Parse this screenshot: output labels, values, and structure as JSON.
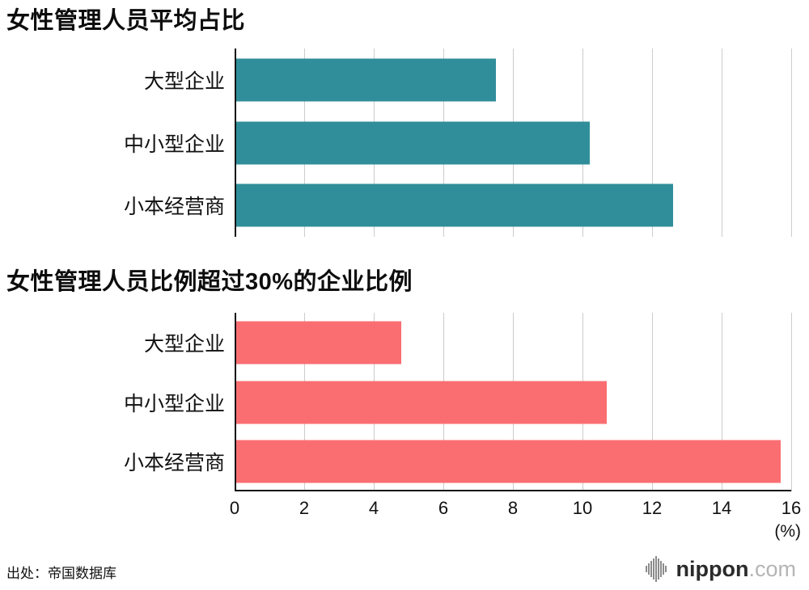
{
  "chart_data": [
    {
      "type": "bar",
      "orientation": "horizontal",
      "title": "女性管理人员平均占比",
      "categories": [
        "大型企业",
        "中小型企业",
        "小本经营商"
      ],
      "values": [
        7.5,
        10.2,
        12.6
      ],
      "xlim": [
        0,
        16
      ],
      "bar_color": "#2f8e99",
      "grid": true,
      "legend": "none"
    },
    {
      "type": "bar",
      "orientation": "horizontal",
      "title": "女性管理人员比例超过30%的企业比例",
      "categories": [
        "大型企业",
        "中小型企业",
        "小本经营商"
      ],
      "values": [
        4.8,
        10.7,
        15.7
      ],
      "xlim": [
        0,
        16
      ],
      "bar_color": "#fa6e72",
      "grid": true,
      "legend": "none"
    }
  ],
  "axis": {
    "ticks": [
      0,
      2,
      4,
      6,
      8,
      10,
      12,
      14,
      16
    ],
    "max": 16,
    "unit": "(%)"
  },
  "footer": {
    "source": "出处：帝国数据库",
    "brand_name": "nippon",
    "brand_tld": ".com"
  },
  "colors": {
    "teal": "#2f8e99",
    "pink": "#fa6e72",
    "gridline": "#cccccc",
    "axis": "#111111",
    "brand_gray": "#8c8c8c"
  }
}
